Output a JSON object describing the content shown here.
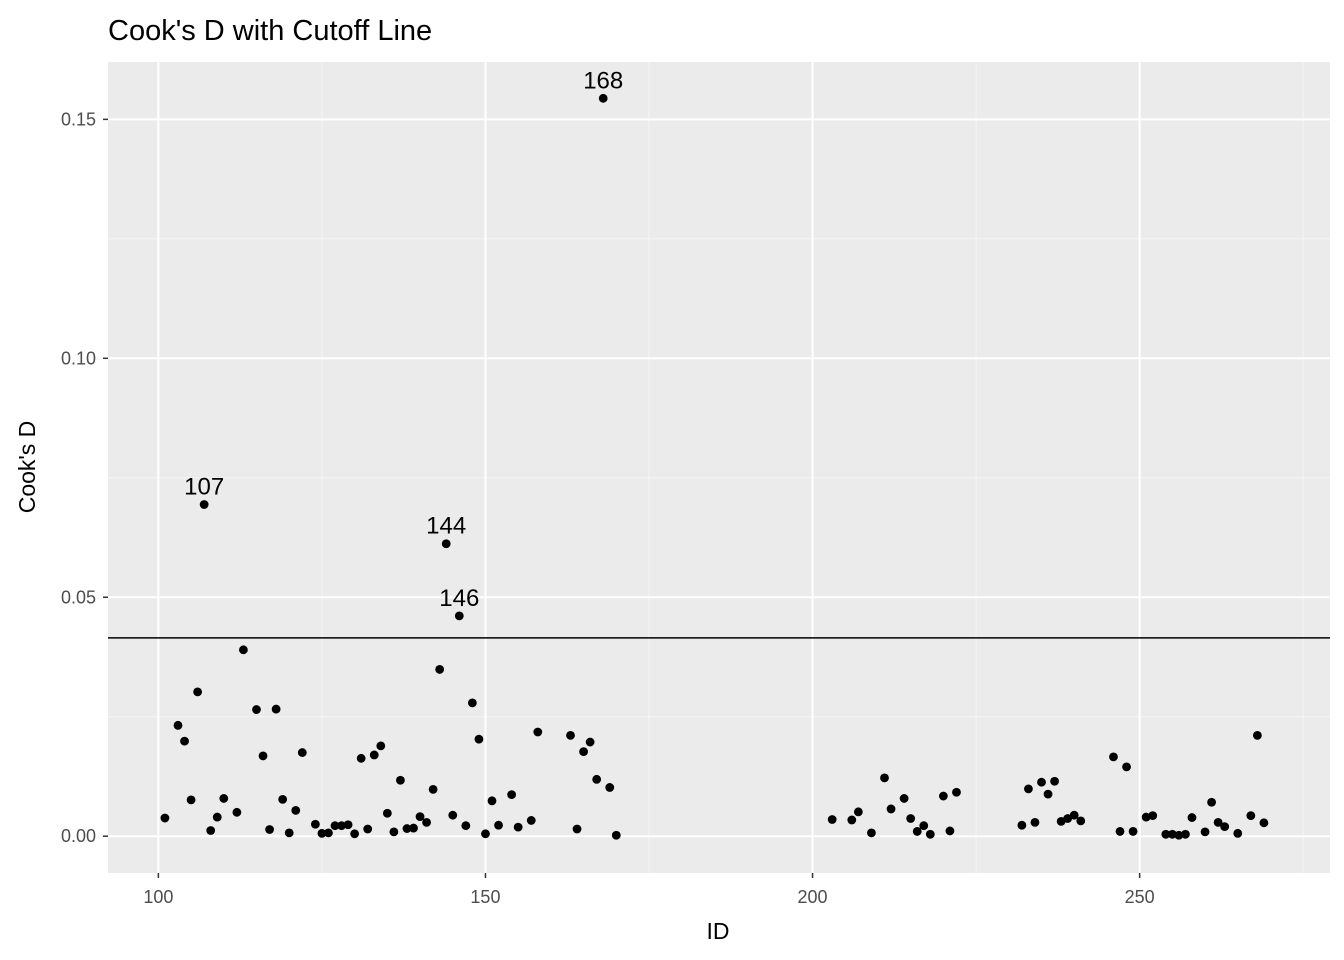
{
  "chart_data": {
    "type": "scatter",
    "title": "Cook's D with Cutoff Line",
    "xlabel": "ID",
    "ylabel": "Cook's D",
    "xlim": [
      92.3,
      279.1
    ],
    "ylim": [
      -0.0077,
      0.162
    ],
    "x_ticks": [
      100,
      150,
      200,
      250
    ],
    "x_tick_labels": [
      "100",
      "150",
      "200",
      "250"
    ],
    "y_ticks": [
      0.0,
      0.05,
      0.1,
      0.15
    ],
    "y_tick_labels": [
      "0.00",
      "0.05",
      "0.10",
      "0.15"
    ],
    "grid": true,
    "cutoff": 0.0415,
    "points": [
      [
        101,
        0.0038
      ],
      [
        103,
        0.0232
      ],
      [
        104,
        0.0199
      ],
      [
        105,
        0.0076
      ],
      [
        106,
        0.0302
      ],
      [
        107,
        0.0694
      ],
      [
        108,
        0.0012
      ],
      [
        109,
        0.004
      ],
      [
        110,
        0.0079
      ],
      [
        112,
        0.005
      ],
      [
        113,
        0.039
      ],
      [
        115,
        0.0265
      ],
      [
        116,
        0.0168
      ],
      [
        117,
        0.0014
      ],
      [
        118,
        0.0266
      ],
      [
        119,
        0.0077
      ],
      [
        120,
        0.0007
      ],
      [
        121,
        0.0054
      ],
      [
        122,
        0.0175
      ],
      [
        124,
        0.0025
      ],
      [
        125,
        0.0006
      ],
      [
        126,
        0.0007
      ],
      [
        127,
        0.0022
      ],
      [
        128,
        0.0022
      ],
      [
        129,
        0.0024
      ],
      [
        130,
        0.0005
      ],
      [
        131,
        0.0163
      ],
      [
        132,
        0.0015
      ],
      [
        133,
        0.017
      ],
      [
        134,
        0.0189
      ],
      [
        135,
        0.0048
      ],
      [
        136,
        0.0009
      ],
      [
        137,
        0.0117
      ],
      [
        138,
        0.0016
      ],
      [
        139,
        0.0017
      ],
      [
        140,
        0.0041
      ],
      [
        141,
        0.0029
      ],
      [
        142,
        0.0098
      ],
      [
        143,
        0.0349
      ],
      [
        144,
        0.0612
      ],
      [
        145,
        0.0044
      ],
      [
        146,
        0.0461
      ],
      [
        147,
        0.0022
      ],
      [
        148,
        0.0279
      ],
      [
        149,
        0.0203
      ],
      [
        150,
        0.0005
      ],
      [
        151,
        0.0074
      ],
      [
        152,
        0.0023
      ],
      [
        154,
        0.0087
      ],
      [
        155,
        0.0019
      ],
      [
        157,
        0.0033
      ],
      [
        158,
        0.0218
      ],
      [
        163,
        0.0211
      ],
      [
        164,
        0.0015
      ],
      [
        165,
        0.0177
      ],
      [
        166,
        0.0197
      ],
      [
        167,
        0.0119
      ],
      [
        169,
        0.0102
      ],
      [
        170,
        0.0002
      ],
      [
        168,
        0.1544
      ],
      [
        203,
        0.0035
      ],
      [
        206,
        0.0034
      ],
      [
        207,
        0.0051
      ],
      [
        209,
        0.0007
      ],
      [
        211,
        0.0122
      ],
      [
        212,
        0.0057
      ],
      [
        214,
        0.0079
      ],
      [
        215,
        0.0037
      ],
      [
        216,
        0.001
      ],
      [
        217,
        0.0022
      ],
      [
        218,
        0.0004
      ],
      [
        220,
        0.0084
      ],
      [
        221,
        0.0011
      ],
      [
        222,
        0.0092
      ],
      [
        232,
        0.0023
      ],
      [
        233,
        0.0099
      ],
      [
        234,
        0.0029
      ],
      [
        235,
        0.0113
      ],
      [
        236,
        0.0088
      ],
      [
        237,
        0.0115
      ],
      [
        238,
        0.0031
      ],
      [
        239,
        0.0037
      ],
      [
        240,
        0.0044
      ],
      [
        241,
        0.0032
      ],
      [
        246,
        0.0166
      ],
      [
        247,
        0.001
      ],
      [
        248,
        0.0145
      ],
      [
        249,
        0.001
      ],
      [
        251,
        0.004
      ],
      [
        252,
        0.0043
      ],
      [
        254,
        0.0004
      ],
      [
        255,
        0.0004
      ],
      [
        256,
        0.0002
      ],
      [
        257,
        0.0004
      ],
      [
        258,
        0.0039
      ],
      [
        260,
        0.0009
      ],
      [
        261,
        0.0071
      ],
      [
        262,
        0.0029
      ],
      [
        263,
        0.002
      ],
      [
        265,
        0.0006
      ],
      [
        267,
        0.0043
      ],
      [
        268,
        0.0211
      ],
      [
        269,
        0.0028
      ]
    ],
    "labeled_points": [
      {
        "x": 168,
        "y": 0.1544,
        "text": "168"
      },
      {
        "x": 107,
        "y": 0.0694,
        "text": "107"
      },
      {
        "x": 144,
        "y": 0.0612,
        "text": "144"
      },
      {
        "x": 146,
        "y": 0.0461,
        "text": "146"
      }
    ],
    "colors": {
      "panel": "#EBEBEB",
      "grid_major": "#FFFFFF",
      "grid_minor": "#F5F5F5",
      "point": "#000000",
      "cutoff_line": "#000000"
    }
  }
}
